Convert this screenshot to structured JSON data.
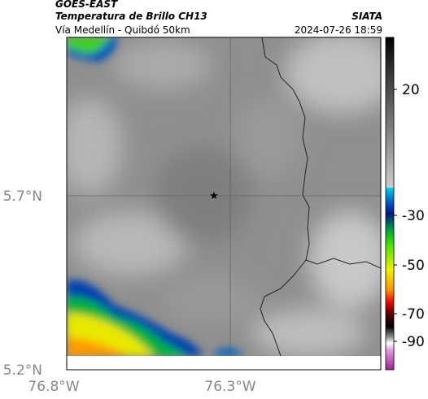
{
  "header": {
    "source": "GOES-EAST",
    "product": "Temperatura de Brillo CH13",
    "org": "SIATA",
    "route": "Vía Medellín - Quibdó 50km",
    "datetime": "2024-07-26 18:59"
  },
  "map": {
    "lat_labels": [
      "5.7°N",
      "5.2°N"
    ],
    "lon_labels": [
      "76.8°W",
      "76.3°W"
    ]
  },
  "colorbar": {
    "ticks": [
      20,
      -30,
      -50,
      -70,
      -90
    ]
  }
}
